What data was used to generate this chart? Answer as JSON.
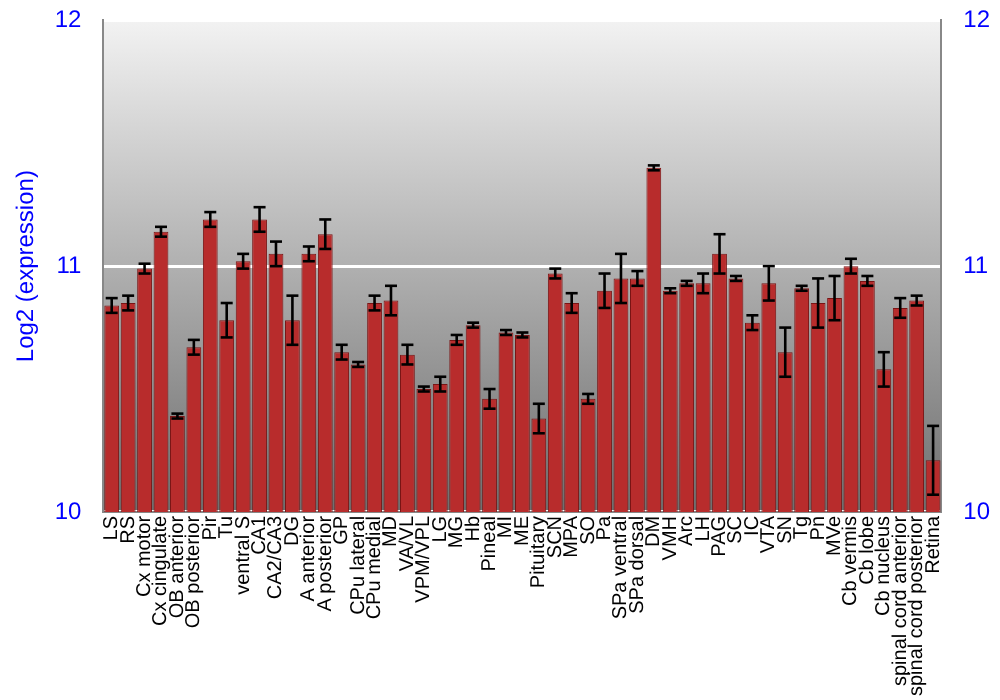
{
  "chart_data": {
    "type": "bar",
    "ylabel": "Log2 (expression)",
    "categories": [
      "LS",
      "RS",
      "Cx motor",
      "Cx cingulate",
      "OB anterior",
      "OB posterior",
      "Pir",
      "Tu",
      "ventral S",
      "CA1",
      "CA2/CA3",
      "DG",
      "A anterior",
      "A posterior",
      "GP",
      "CPu lateral",
      "CPu medial",
      "MD",
      "VA/VL",
      "VPM/VPL",
      "LG",
      "MG",
      "Hb",
      "Pineal",
      "MI",
      "ME",
      "Pituitary",
      "SCN",
      "MPA",
      "SO",
      "Pa",
      "SPa ventral",
      "SPa dorsal",
      "DM",
      "VMH",
      "Arc",
      "LH",
      "PAG",
      "SC",
      "IC",
      "VTA",
      "SN",
      "Tg",
      "Pn",
      "MVe",
      "Cb vermis",
      "Cb lobe",
      "Cb nucleus",
      "spinal cord anterior",
      "spinal cord posterior",
      "Retina"
    ],
    "values": [
      10.84,
      10.85,
      10.99,
      11.14,
      10.39,
      10.67,
      11.19,
      10.78,
      11.02,
      11.19,
      11.05,
      10.78,
      11.05,
      11.13,
      10.65,
      10.6,
      10.85,
      10.86,
      10.64,
      10.5,
      10.52,
      10.7,
      10.76,
      10.46,
      10.73,
      10.72,
      10.38,
      10.97,
      10.85,
      10.46,
      10.9,
      10.95,
      10.95,
      11.4,
      10.9,
      10.93,
      10.93,
      11.05,
      10.95,
      10.77,
      10.93,
      10.65,
      10.91,
      10.85,
      10.87,
      11.0,
      10.94,
      10.58,
      10.83,
      10.86,
      10.21
    ],
    "errors": [
      0.03,
      0.03,
      0.02,
      0.02,
      0.01,
      0.03,
      0.03,
      0.07,
      0.03,
      0.05,
      0.05,
      0.1,
      0.03,
      0.06,
      0.03,
      0.01,
      0.03,
      0.06,
      0.04,
      0.01,
      0.03,
      0.02,
      0.01,
      0.04,
      0.01,
      0.01,
      0.06,
      0.02,
      0.04,
      0.02,
      0.07,
      0.1,
      0.03,
      0.01,
      0.01,
      0.01,
      0.04,
      0.08,
      0.01,
      0.03,
      0.07,
      0.1,
      0.01,
      0.1,
      0.09,
      0.03,
      0.02,
      0.07,
      0.04,
      0.02,
      0.14
    ],
    "color": "#b82c2c",
    "ylim": [
      10,
      12
    ],
    "yticks": [
      10,
      11,
      12
    ],
    "y2lim": [
      10,
      12
    ],
    "y2ticks": [
      10,
      11,
      12
    ],
    "grid": "y",
    "legend": false
  }
}
